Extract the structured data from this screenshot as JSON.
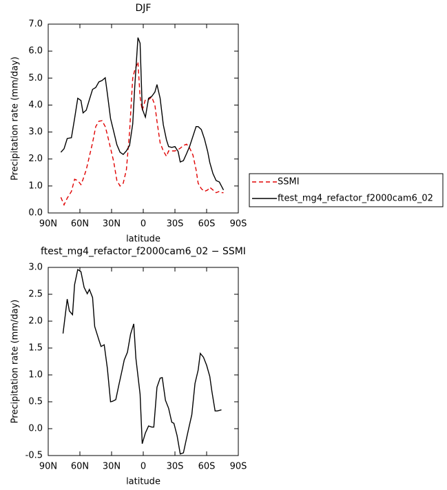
{
  "chart_data": [
    {
      "type": "line",
      "title": "DJF",
      "xlabel": "latitude",
      "ylabel": "Precipitation rate (mm/day)",
      "x": [
        78,
        75,
        72,
        68,
        65,
        62,
        59,
        57,
        54,
        51,
        48,
        45,
        42,
        39,
        36,
        34,
        31,
        28,
        25,
        22,
        19,
        16,
        13,
        10,
        8,
        5,
        3,
        1,
        -2,
        -5,
        -8,
        -11,
        -13,
        -16,
        -19,
        -22,
        -24,
        -27,
        -30,
        -33,
        -35,
        -38,
        -41,
        -44,
        -47,
        -50,
        -52,
        -55,
        -58,
        -61,
        -63,
        -66,
        -69,
        -72,
        -74,
        -76
      ],
      "series": [
        {
          "name": "SSMI",
          "color": "#e00000",
          "dash": "dashed",
          "values": [
            0.58,
            0.3,
            0.55,
            0.8,
            1.25,
            1.2,
            1.05,
            1.25,
            1.6,
            2.1,
            2.6,
            3.2,
            3.4,
            3.42,
            3.2,
            2.9,
            2.4,
            1.9,
            1.2,
            1.0,
            1.1,
            1.6,
            3.0,
            5.0,
            5.3,
            5.6,
            4.3,
            3.8,
            4.2,
            4.2,
            4.3,
            4.0,
            3.4,
            2.6,
            2.3,
            2.1,
            2.3,
            2.3,
            2.3,
            2.35,
            2.4,
            2.5,
            2.55,
            2.4,
            2.15,
            1.6,
            1.1,
            0.9,
            0.8,
            0.85,
            0.95,
            0.85,
            0.75,
            0.8,
            0.75,
            0.75
          ]
        },
        {
          "name": "ftest_mg4_refactor_f2000cam6_02",
          "color": "#000000",
          "dash": "solid",
          "values": [
            2.25,
            2.38,
            2.76,
            2.79,
            3.5,
            4.25,
            4.17,
            3.71,
            3.81,
            4.2,
            4.58,
            4.65,
            4.86,
            4.91,
            5.01,
            4.42,
            3.5,
            3.02,
            2.53,
            2.25,
            2.17,
            2.3,
            2.5,
            3.3,
            4.7,
            6.5,
            6.29,
            3.86,
            3.55,
            4.25,
            4.32,
            4.48,
            4.76,
            4.25,
            3.27,
            2.71,
            2.46,
            2.43,
            2.46,
            2.28,
            1.89,
            1.94,
            2.2,
            2.48,
            2.84,
            3.2,
            3.2,
            3.09,
            2.74,
            2.28,
            1.87,
            1.46,
            1.2,
            1.15,
            1.0,
            0.85
          ]
        }
      ],
      "xlim": [
        90,
        -90
      ],
      "xticks": [
        {
          "value": 90,
          "label": "90N"
        },
        {
          "value": 60,
          "label": "60N"
        },
        {
          "value": 30,
          "label": "30N"
        },
        0,
        {
          "value": -30,
          "label": "30S"
        },
        {
          "value": -60,
          "label": "60S"
        },
        {
          "value": -90,
          "label": "90S"
        }
      ],
      "ylim": [
        0,
        7
      ],
      "yticks": [
        {
          "value": 0,
          "label": "0.0"
        },
        {
          "value": 1,
          "label": "1.0"
        },
        {
          "value": 2,
          "label": "2.0"
        },
        {
          "value": 3,
          "label": "3.0"
        },
        {
          "value": 4,
          "label": "4.0"
        },
        {
          "value": 5,
          "label": "5.0"
        },
        {
          "value": 6,
          "label": "6.0"
        },
        {
          "value": 7,
          "label": "7.0"
        }
      ],
      "legend": "right"
    },
    {
      "type": "line",
      "title": "ftest_mg4_refactor_f2000cam6_02 − SSMI",
      "xlabel": "latitude",
      "ylabel": "Precipitation rate (mm/day)",
      "x": [
        76,
        72,
        70,
        67,
        65,
        62,
        59,
        56,
        53,
        51,
        48,
        46,
        42,
        40,
        37,
        34,
        31,
        29,
        26,
        23,
        20,
        18,
        15,
        12,
        9,
        7,
        3,
        1,
        -2,
        -5,
        -8,
        -10,
        -13,
        -16,
        -18,
        -21,
        -24,
        -27,
        -29,
        -32,
        -35,
        -38,
        -40,
        -43,
        -46,
        -49,
        -52,
        -54,
        -57,
        -60,
        -63,
        -65,
        -68,
        -70,
        -74
      ],
      "series": [
        {
          "color": "#000000",
          "dash": "solid",
          "values": [
            1.77,
            2.41,
            2.19,
            2.12,
            2.68,
            2.96,
            2.92,
            2.63,
            2.51,
            2.59,
            2.44,
            1.9,
            1.65,
            1.53,
            1.56,
            1.12,
            0.5,
            0.51,
            0.54,
            0.82,
            1.09,
            1.28,
            1.42,
            1.76,
            1.95,
            1.31,
            0.64,
            -0.28,
            -0.08,
            0.05,
            0.03,
            0.03,
            0.77,
            0.94,
            0.95,
            0.53,
            0.38,
            0.12,
            0.1,
            -0.13,
            -0.47,
            -0.45,
            -0.27,
            0,
            0.26,
            0.84,
            1.09,
            1.4,
            1.33,
            1.18,
            0.97,
            0.69,
            0.33,
            0.33,
            0.35
          ]
        }
      ],
      "xlim": [
        90,
        -90
      ],
      "xticks": [
        {
          "value": 90,
          "label": "90N"
        },
        {
          "value": 60,
          "label": "60N"
        },
        {
          "value": 30,
          "label": "30N"
        },
        0,
        {
          "value": -30,
          "label": "30S"
        },
        {
          "value": -60,
          "label": "60S"
        },
        {
          "value": -90,
          "label": "90S"
        }
      ],
      "ylim": [
        -0.5,
        3
      ],
      "yticks": [
        -0.5,
        {
          "value": 0,
          "label": "0.0"
        },
        0.5,
        {
          "value": 1,
          "label": "1.0"
        },
        1.5,
        {
          "value": 2,
          "label": "2.0"
        },
        2.5,
        {
          "value": 3,
          "label": "3.0"
        }
      ]
    }
  ]
}
